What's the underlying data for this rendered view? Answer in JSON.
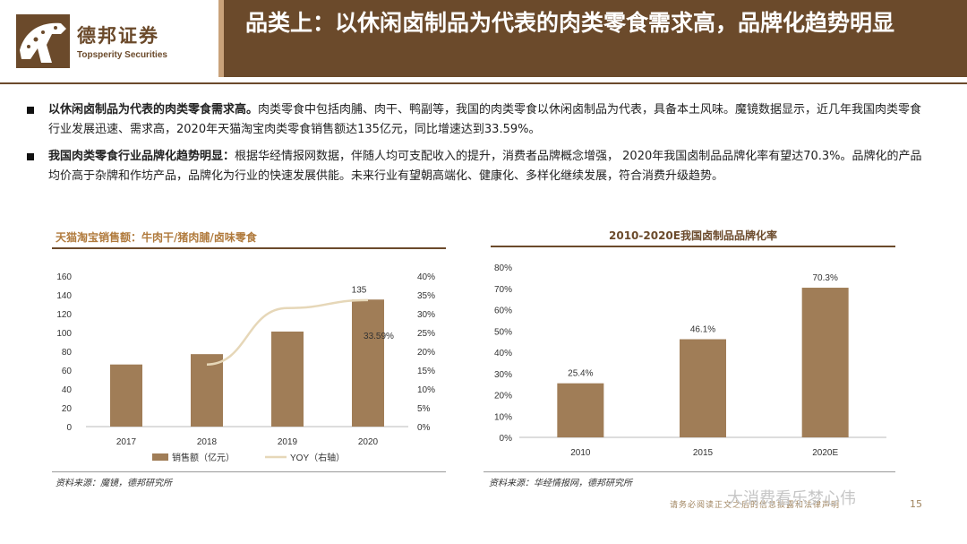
{
  "header": {
    "logo_cn": "德邦证券",
    "logo_en": "Topsperity Securities",
    "title": "品类上：以休闲卤制品为代表的肉类零食需求高，品牌化趋势明显"
  },
  "bullets": [
    {
      "bold": "以休闲卤制品为代表的肉类零食需求高。",
      "text": "肉类零食中包括肉脯、肉干、鸭副等，我国的肉类零食以休闲卤制品为代表，具备本土风味。魔镜数据显示，近几年我国肉类零食行业发展迅速、需求高，2020年天猫淘宝肉类零食销售额达135亿元，同比增速达到33.59%。"
    },
    {
      "bold": "我国肉类零食行业品牌化趋势明显：",
      "text": "根据华经情报网数据，伴随人均可支配收入的提升，消费者品牌概念增强， 2020年我国卤制品品牌化率有望达70.3%。品牌化的产品均价高于杂牌和作坊产品，品牌化为行业的快速发展供能。未来行业有望朝高端化、健康化、多样化继续发展，符合消费升级趋势。"
    }
  ],
  "left_chart_title": "天猫淘宝销售额：牛肉干/猪肉脯/卤味零食",
  "right_chart_title": "2010-2020E我国卤制品品牌化率",
  "source_left": "资料来源：魔镜，德邦研究所",
  "source_right": "资料来源：华经情报网，德邦研究所",
  "footer_text": "请务必阅读正文之后的信息披露和法律声明",
  "watermark": "大消费看乐梦心伟",
  "page_number": "15",
  "colors": {
    "brand_brown": "#6b4a2b",
    "bar": "#a07d57",
    "line": "#e6d7b8"
  },
  "chart_data": [
    {
      "type": "bar",
      "categories": [
        "2017",
        "2018",
        "2019",
        "2020"
      ],
      "series": [
        {
          "name": "销售额（亿元）",
          "values": [
            66,
            77,
            101,
            135
          ],
          "axis": "left",
          "type": "bar"
        },
        {
          "name": "YOY（右轴）",
          "values": [
            null,
            16.5,
            31.5,
            33.59
          ],
          "axis": "right",
          "type": "line"
        }
      ],
      "y_ticks": [
        "0",
        "20",
        "40",
        "60",
        "80",
        "100",
        "120",
        "140",
        "160"
      ],
      "y2_ticks": [
        "0%",
        "5%",
        "10%",
        "15%",
        "20%",
        "25%",
        "30%",
        "35%",
        "40%"
      ],
      "ylim": [
        0,
        160
      ],
      "y2lim": [
        0,
        40
      ],
      "data_labels": {
        "bar_2020": "135",
        "line_2020": "33.59%"
      },
      "legend_position": "bottom",
      "grid": false
    },
    {
      "type": "bar",
      "categories": [
        "2010",
        "2015",
        "2020E"
      ],
      "values": [
        25.4,
        46.1,
        70.3
      ],
      "data_labels": [
        "25.4%",
        "46.1%",
        "70.3%"
      ],
      "y_ticks": [
        "0%",
        "10%",
        "20%",
        "30%",
        "40%",
        "50%",
        "60%",
        "70%",
        "80%"
      ],
      "ylim": [
        0,
        80
      ],
      "grid": false
    }
  ]
}
